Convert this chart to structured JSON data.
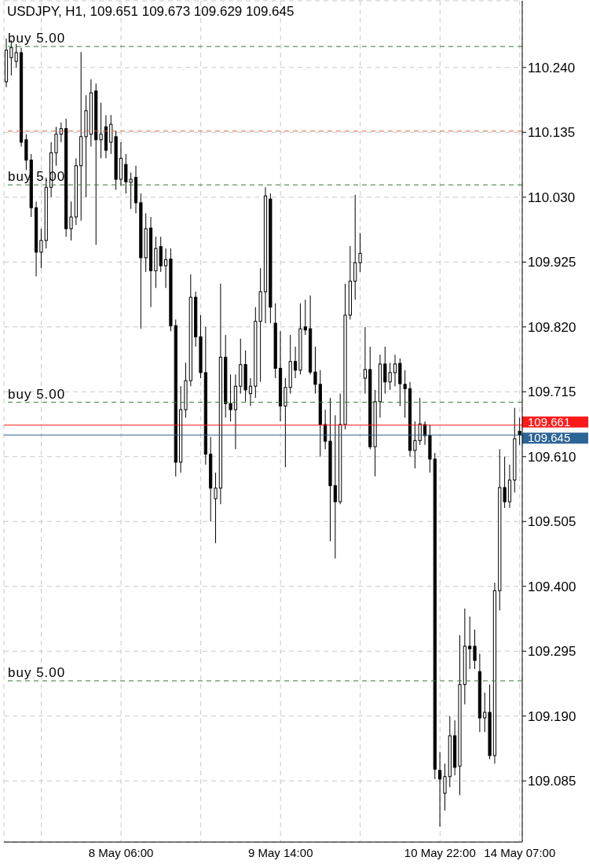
{
  "chart_data": {
    "type": "candlestick",
    "title": "USDJPY, H1, 109.651 109.673 109.629 109.645",
    "categories": [
      null,
      null,
      null,
      null,
      null,
      null,
      null,
      null,
      null,
      null,
      null,
      null,
      null,
      null,
      null,
      null,
      null,
      null,
      null,
      null,
      null,
      null,
      null,
      "8 May 06:00",
      null,
      null,
      null,
      null,
      null,
      null,
      null,
      null,
      null,
      null,
      null,
      null,
      null,
      null,
      null,
      null,
      null,
      null,
      null,
      null,
      null,
      null,
      null,
      null,
      null,
      null,
      null,
      null,
      null,
      null,
      null,
      "9 May 14:00",
      null,
      null,
      null,
      null,
      null,
      null,
      null,
      null,
      null,
      null,
      null,
      null,
      null,
      null,
      null,
      null,
      null,
      null,
      null,
      null,
      null,
      null,
      null,
      null,
      null,
      null,
      null,
      null,
      null,
      null,
      null,
      "10 May 22:00",
      null,
      null,
      null,
      null,
      null,
      null,
      null,
      null,
      null,
      null,
      null,
      null,
      null,
      null,
      null,
      "14 May 07:00"
    ],
    "ohlc": [
      [
        110.217,
        110.287,
        110.208,
        110.268
      ],
      [
        110.256,
        110.284,
        110.227,
        110.272
      ],
      [
        110.25,
        110.278,
        110.24,
        110.264
      ],
      [
        110.264,
        110.272,
        110.112,
        110.119
      ],
      [
        110.123,
        110.132,
        110.074,
        110.09
      ],
      [
        110.09,
        110.1,
        109.998,
        110.013
      ],
      [
        110.013,
        110.023,
        109.902,
        109.941
      ],
      [
        109.941,
        109.979,
        109.915,
        109.96
      ],
      [
        109.96,
        110.062,
        109.947,
        110.046
      ],
      [
        110.046,
        110.119,
        110.03,
        110.102
      ],
      [
        110.102,
        110.144,
        110.081,
        110.132
      ],
      [
        110.132,
        110.151,
        110.119,
        110.141
      ],
      [
        110.141,
        110.157,
        109.966,
        109.979
      ],
      [
        109.979,
        110.023,
        109.96,
        109.998
      ],
      [
        109.998,
        110.093,
        109.985,
        110.081
      ],
      [
        110.081,
        110.265,
        109.992,
        110.128
      ],
      [
        110.128,
        110.195,
        110.03,
        110.17
      ],
      [
        110.132,
        110.221,
        110.112,
        110.199
      ],
      [
        110.202,
        110.214,
        109.953,
        110.123
      ],
      [
        110.123,
        110.183,
        110.093,
        110.132
      ],
      [
        110.144,
        110.163,
        110.093,
        110.106
      ],
      [
        110.119,
        110.163,
        110.1,
        110.148
      ],
      [
        110.128,
        110.138,
        110.042,
        110.059
      ],
      [
        110.059,
        110.119,
        110.049,
        110.093
      ],
      [
        110.083,
        110.1,
        110.036,
        110.055
      ],
      [
        110.054,
        110.07,
        110.011,
        110.059
      ],
      [
        110.062,
        110.081,
        110.004,
        110.021
      ],
      [
        110.021,
        110.036,
        109.817,
        109.932
      ],
      [
        109.932,
        110.004,
        109.909,
        109.979
      ],
      [
        109.98,
        109.998,
        109.852,
        109.911
      ],
      [
        109.911,
        109.966,
        109.883,
        109.947
      ],
      [
        109.95,
        109.966,
        109.909,
        109.919
      ],
      [
        109.919,
        109.947,
        109.883,
        109.929
      ],
      [
        109.93,
        109.947,
        109.813,
        109.822
      ],
      [
        109.822,
        109.832,
        109.578,
        109.601
      ],
      [
        109.601,
        109.724,
        109.584,
        109.686
      ],
      [
        109.686,
        109.762,
        109.673,
        109.733
      ],
      [
        109.733,
        109.905,
        109.724,
        109.868
      ],
      [
        109.868,
        109.877,
        109.788,
        109.804
      ],
      [
        109.804,
        109.839,
        109.737,
        109.746
      ],
      [
        109.746,
        109.82,
        109.597,
        109.614
      ],
      [
        109.614,
        109.642,
        109.505,
        109.559
      ],
      [
        109.542,
        109.584,
        109.47,
        109.559
      ],
      [
        109.559,
        109.89,
        109.533,
        109.771
      ],
      [
        109.771,
        109.807,
        109.673,
        109.696
      ],
      [
        109.696,
        109.743,
        109.667,
        109.686
      ],
      [
        109.686,
        109.743,
        109.622,
        109.724
      ],
      [
        109.724,
        109.801,
        109.712,
        109.759
      ],
      [
        109.759,
        109.782,
        109.699,
        109.718
      ],
      [
        109.712,
        109.737,
        109.692,
        109.724
      ],
      [
        109.724,
        109.852,
        109.705,
        109.829
      ],
      [
        109.829,
        109.915,
        109.731,
        109.877
      ],
      [
        109.877,
        110.046,
        109.826,
        110.032
      ],
      [
        110.027,
        110.036,
        109.826,
        109.852
      ],
      [
        109.826,
        109.858,
        109.737,
        109.753
      ],
      [
        109.753,
        109.813,
        109.667,
        109.692
      ],
      [
        109.692,
        109.737,
        109.593,
        109.722
      ],
      [
        109.722,
        109.807,
        109.712,
        109.764
      ],
      [
        109.764,
        109.788,
        109.737,
        109.75
      ],
      [
        109.75,
        109.858,
        109.743,
        109.817
      ],
      [
        109.82,
        109.864,
        109.807,
        109.815
      ],
      [
        109.817,
        109.871,
        109.743,
        109.747
      ],
      [
        109.747,
        109.788,
        109.712,
        109.727
      ],
      [
        109.727,
        109.75,
        109.61,
        109.662
      ],
      [
        109.662,
        109.686,
        109.622,
        109.635
      ],
      [
        109.635,
        109.705,
        109.473,
        109.563
      ],
      [
        109.563,
        109.677,
        109.445,
        109.537
      ],
      [
        109.537,
        109.712,
        109.533,
        109.662
      ],
      [
        109.662,
        109.89,
        109.654,
        109.839
      ],
      [
        109.839,
        109.951,
        109.832,
        109.894
      ],
      [
        109.894,
        110.034,
        109.864,
        109.924
      ],
      [
        109.924,
        109.972,
        109.909,
        109.939
      ],
      [
        109.737,
        109.82,
        109.712,
        109.751
      ],
      [
        109.751,
        109.788,
        109.622,
        109.626
      ],
      [
        109.626,
        109.718,
        109.578,
        109.699
      ],
      [
        109.699,
        109.775,
        109.673,
        109.76
      ],
      [
        109.76,
        109.788,
        109.712,
        109.731
      ],
      [
        109.731,
        109.762,
        109.718,
        109.746
      ],
      [
        109.746,
        109.775,
        109.724,
        109.76
      ],
      [
        109.761,
        109.769,
        109.692,
        109.728
      ],
      [
        109.727,
        109.75,
        109.673,
        109.72
      ],
      [
        109.72,
        109.731,
        109.61,
        109.62
      ],
      [
        109.62,
        109.667,
        109.591,
        109.636
      ],
      [
        109.636,
        109.705,
        109.629,
        109.663
      ],
      [
        109.662,
        109.667,
        109.629,
        109.644
      ],
      [
        109.644,
        109.661,
        109.584,
        109.606
      ],
      [
        109.606,
        109.616,
        109.088,
        109.104
      ],
      [
        109.102,
        109.132,
        109.011,
        109.088
      ],
      [
        109.065,
        109.113,
        109.037,
        109.092
      ],
      [
        109.092,
        109.19,
        109.075,
        109.158
      ],
      [
        109.158,
        109.183,
        109.094,
        109.107
      ],
      [
        109.109,
        109.321,
        109.062,
        109.241
      ],
      [
        109.241,
        109.364,
        109.209,
        109.303
      ],
      [
        109.303,
        109.351,
        109.266,
        109.299
      ],
      [
        109.303,
        109.33,
        109.266,
        109.28
      ],
      [
        109.262,
        109.291,
        109.164,
        109.187
      ],
      [
        109.187,
        109.228,
        109.164,
        109.196
      ],
      [
        109.196,
        109.241,
        109.12,
        109.126
      ],
      [
        109.126,
        109.406,
        109.113,
        109.393
      ],
      [
        109.393,
        109.622,
        109.361,
        109.56
      ],
      [
        109.56,
        109.61,
        109.527,
        109.537
      ],
      [
        109.537,
        109.597,
        109.527,
        109.572
      ],
      [
        109.572,
        109.689,
        109.552,
        109.639
      ],
      [
        109.651,
        109.673,
        109.629,
        109.645
      ]
    ],
    "color": "#000000",
    "ylim": [
      108.986,
      110.348
    ],
    "yticks": [
      109.085,
      {
        "value": 109.19,
        "label": "109.190"
      },
      109.295,
      {
        "value": 109.4,
        "label": "109.400"
      },
      109.505,
      {
        "value": 109.61,
        "label": "109.610"
      },
      109.715,
      {
        "value": 109.82,
        "label": "109.820"
      },
      109.925,
      {
        "value": 110.03,
        "label": "110.030"
      },
      110.135,
      {
        "value": 110.24,
        "label": "110.240"
      }
    ],
    "ref_lines": [
      {
        "axis": "y",
        "value": 110.274,
        "label": "buy 5.00",
        "color": "#2e7d32",
        "line_style": "dashed"
      },
      {
        "axis": "y",
        "value": 110.137,
        "label": null,
        "color": "#e0603c",
        "line_style": "dashed"
      },
      {
        "axis": "y",
        "value": 110.05,
        "label": "buy 5.00",
        "color": "#2e7d32",
        "line_style": "dashed"
      },
      {
        "axis": "y",
        "value": 109.698,
        "label": "buy 5.00",
        "color": "#2e7d32",
        "line_style": "dashed"
      },
      {
        "axis": "y",
        "value": 109.247,
        "label": "buy 5.00",
        "color": "#2e7d32",
        "line_style": "dashed"
      },
      {
        "axis": "y",
        "value": 109.661,
        "label": "109.661",
        "color": "#ff1a1a",
        "line_style": "solid"
      },
      {
        "axis": "y",
        "value": 109.645,
        "label": "109.645",
        "color": "#2f6496",
        "line_style": "solid"
      }
    ],
    "grid": true
  }
}
